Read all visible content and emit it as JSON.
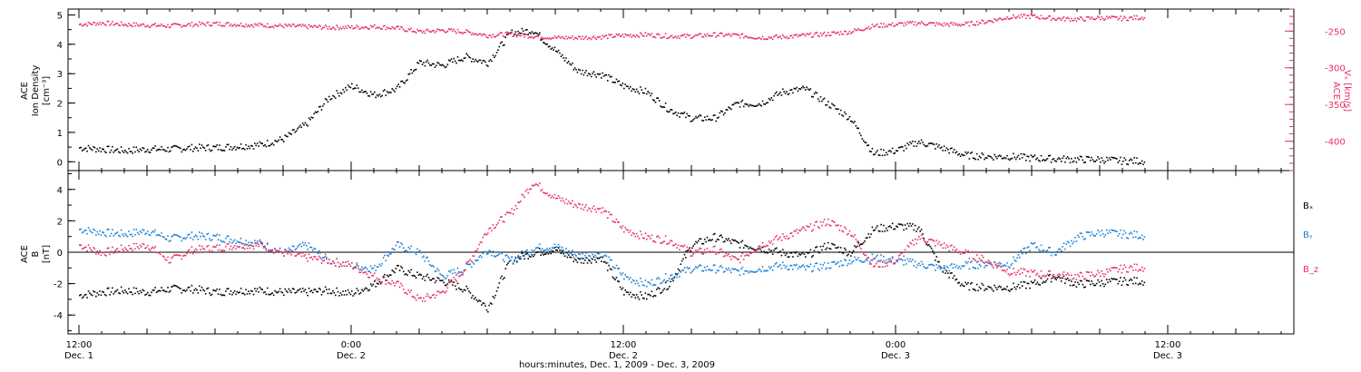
{
  "chart_data": [
    {
      "type": "scatter",
      "ylabel_left": [
        "ACE",
        "Ion Density",
        "[cm⁻³]"
      ],
      "ylabel_right": [
        "ACE",
        "Vₓ [km/s]"
      ],
      "ylim_left": [
        -0.3,
        5.2
      ],
      "ylim_right": [
        -440,
        -220
      ],
      "yticks_left": [
        "0",
        "1",
        "2",
        "3",
        "4",
        "5"
      ],
      "yticks_right": [
        "-250",
        "-300",
        "-350",
        "-400"
      ],
      "series": [
        {
          "color": "#000000",
          "axis": "left",
          "x": [
            0,
            1,
            2,
            3,
            4,
            5,
            6,
            7,
            8,
            9,
            10,
            11,
            12,
            13,
            14,
            15,
            16,
            17,
            18,
            19,
            20,
            21,
            22,
            23,
            24,
            25,
            26,
            27,
            28,
            29,
            30,
            31,
            32,
            33,
            34,
            35,
            36,
            37,
            38,
            39,
            40,
            41,
            42,
            43,
            44,
            45,
            46,
            47
          ],
          "y": [
            0.5,
            0.45,
            0.4,
            0.45,
            0.45,
            0.5,
            0.5,
            0.55,
            0.6,
            0.8,
            1.3,
            2.2,
            2.6,
            2.3,
            2.5,
            3.4,
            3.3,
            3.6,
            3.4,
            4.4,
            4.5,
            3.8,
            3.1,
            3.0,
            2.6,
            2.4,
            1.8,
            1.5,
            1.5,
            2.0,
            2.0,
            2.4,
            2.5,
            2.0,
            1.5,
            0.3,
            0.4,
            0.7,
            0.5,
            0.25,
            0.2,
            0.2,
            0.15,
            0.12,
            0.1,
            0.1,
            0.05,
            0.05
          ]
        },
        {
          "color": "#e8305f",
          "axis": "right",
          "x": [
            0,
            1,
            2,
            3,
            4,
            5,
            6,
            7,
            8,
            9,
            10,
            11,
            12,
            13,
            14,
            15,
            16,
            17,
            18,
            19,
            20,
            21,
            22,
            23,
            24,
            25,
            26,
            27,
            28,
            29,
            30,
            31,
            32,
            33,
            34,
            35,
            36,
            37,
            38,
            39,
            40,
            41,
            42,
            43,
            44,
            45,
            46,
            47
          ],
          "y": [
            -240,
            -238,
            -240,
            -241,
            -242,
            -240,
            -239,
            -240,
            -241,
            -242,
            -243,
            -244,
            -244,
            -243,
            -245,
            -250,
            -248,
            -250,
            -255,
            -253,
            -256,
            -258,
            -258,
            -257,
            -255,
            -254,
            -256,
            -256,
            -254,
            -255,
            -258,
            -257,
            -255,
            -253,
            -250,
            -242,
            -240,
            -238,
            -240,
            -240,
            -236,
            -230,
            -229,
            -232,
            -233,
            -231,
            -232,
            -230
          ]
        }
      ]
    },
    {
      "type": "scatter",
      "ylabel_left": [
        "ACE",
        "B",
        "[nT]"
      ],
      "ylim": [
        -5.2,
        5.2
      ],
      "yticks": [
        "-4",
        "-2",
        "0",
        "2",
        "4"
      ],
      "legend": [
        "Bₓ",
        "Bᵧ",
        "B_z"
      ],
      "series": [
        {
          "color": "#000000",
          "x": [
            0,
            1,
            2,
            3,
            4,
            5,
            6,
            7,
            8,
            9,
            10,
            11,
            12,
            13,
            14,
            15,
            16,
            17,
            18,
            19,
            20,
            21,
            22,
            23,
            24,
            25,
            26,
            27,
            28,
            29,
            30,
            31,
            32,
            33,
            34,
            35,
            36,
            37,
            38,
            39,
            40,
            41,
            42,
            43,
            44,
            45,
            46,
            47
          ],
          "y": [
            -2.7,
            -2.5,
            -2.4,
            -2.5,
            -2.3,
            -2.3,
            -2.5,
            -2.4,
            -2.4,
            -2.5,
            -2.5,
            -2.4,
            -2.6,
            -2.0,
            -1.0,
            -1.5,
            -1.8,
            -2.3,
            -3.5,
            -0.5,
            0.0,
            0.2,
            -0.5,
            -0.3,
            -2.5,
            -2.8,
            -2.0,
            0.5,
            1.0,
            0.6,
            0.3,
            0.0,
            -0.2,
            0.5,
            0.0,
            1.5,
            1.7,
            1.6,
            -1.0,
            -2.1,
            -2.2,
            -2.2,
            -2.0,
            -1.5,
            -2.0,
            -1.9,
            -1.8,
            -1.8
          ]
        },
        {
          "color": "#1c7fd6",
          "x": [
            0,
            1,
            2,
            3,
            4,
            5,
            6,
            7,
            8,
            9,
            10,
            11,
            12,
            13,
            14,
            15,
            16,
            17,
            18,
            19,
            20,
            21,
            22,
            23,
            24,
            25,
            26,
            27,
            28,
            29,
            30,
            31,
            32,
            33,
            34,
            35,
            36,
            37,
            38,
            39,
            40,
            41,
            42,
            43,
            44,
            45,
            46,
            47
          ],
          "y": [
            1.5,
            1.3,
            1.2,
            1.4,
            0.9,
            1.1,
            1.0,
            0.8,
            0.6,
            0.0,
            0.5,
            -0.5,
            -0.8,
            -1.0,
            0.5,
            0.0,
            -1.5,
            -1.0,
            0.2,
            -0.5,
            0.3,
            0.4,
            -0.2,
            0.0,
            -1.5,
            -2.0,
            -1.5,
            -1.0,
            -1.0,
            -1.2,
            -1.0,
            -0.8,
            -1.0,
            -0.8,
            -0.5,
            -0.3,
            -0.5,
            -0.7,
            -1.0,
            -0.8,
            -0.7,
            -0.7,
            0.5,
            0.0,
            1.0,
            1.3,
            1.2,
            1.1
          ]
        },
        {
          "color": "#e8305f",
          "x": [
            0,
            1,
            2,
            3,
            4,
            5,
            6,
            7,
            8,
            9,
            10,
            11,
            12,
            13,
            14,
            15,
            16,
            17,
            18,
            19,
            20,
            21,
            22,
            23,
            24,
            25,
            26,
            27,
            28,
            29,
            30,
            31,
            32,
            33,
            34,
            35,
            36,
            37,
            38,
            39,
            40,
            41,
            42,
            43,
            44,
            45,
            46,
            47
          ],
          "y": [
            0.5,
            0.0,
            0.3,
            0.5,
            -0.5,
            0.2,
            0.3,
            0.5,
            0.5,
            0.0,
            -0.3,
            -0.5,
            -0.8,
            -1.5,
            -2.0,
            -3.0,
            -2.5,
            -1.0,
            1.5,
            2.5,
            4.5,
            3.5,
            3.0,
            2.8,
            1.5,
            1.0,
            0.8,
            0.0,
            0.2,
            -0.5,
            0.5,
            1.0,
            1.5,
            2.0,
            1.3,
            -0.8,
            -0.5,
            1.0,
            0.5,
            0.0,
            -0.5,
            -1.2,
            -1.3,
            -1.4,
            -1.5,
            -1.3,
            -1.0,
            -0.9
          ]
        }
      ]
    }
  ],
  "x_axis": {
    "range_hours": [
      0,
      48
    ],
    "major_ticks": [
      {
        "x": 0,
        "time": "12:00",
        "day": "Dec. 1"
      },
      {
        "x": 12,
        "time": "0:00",
        "day": "Dec. 2"
      },
      {
        "x": 24,
        "time": "12:00",
        "day": "Dec. 2"
      },
      {
        "x": 36,
        "time": "0:00",
        "day": "Dec. 3"
      },
      {
        "x": 48,
        "time": "12:00",
        "day": "Dec. 3"
      }
    ],
    "label": "hours:minutes, Dec.  1, 2009 - Dec.  3, 2009"
  },
  "colors": {
    "black": "#000000",
    "pink": "#e8305f",
    "blue": "#1c7fd6"
  }
}
